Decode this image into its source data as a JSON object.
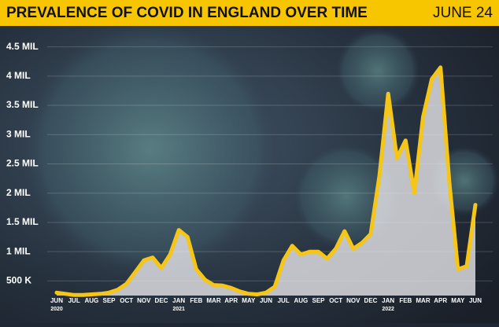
{
  "chart_data": {
    "type": "area-line",
    "title": "PREVALENCE OF COVID IN ENGLAND OVER TIME",
    "date_label": "JUNE 24",
    "categories": [
      "JUN",
      null,
      "JUL",
      null,
      "AUG",
      null,
      "SEP",
      null,
      "OCT",
      null,
      "NOV",
      null,
      "DEC",
      null,
      "JAN",
      null,
      "FEB",
      null,
      "MAR",
      null,
      "APR",
      null,
      "MAY",
      null,
      "JUN",
      null,
      "JUL",
      null,
      "AUG",
      null,
      "SEP",
      null,
      "OCT",
      null,
      "NOV",
      null,
      "DEC",
      null,
      "JAN",
      null,
      "FEB",
      null,
      "MAR",
      null,
      "APR",
      null,
      "MAY",
      null,
      "JUN"
    ],
    "x_sublabels": [
      "2020",
      null,
      null,
      null,
      null,
      null,
      null,
      null,
      null,
      null,
      null,
      null,
      null,
      null,
      "2021",
      null,
      null,
      null,
      null,
      null,
      null,
      null,
      null,
      null,
      null,
      null,
      null,
      null,
      null,
      null,
      null,
      null,
      null,
      null,
      null,
      null,
      null,
      null,
      "2022",
      null,
      null,
      null,
      null,
      null,
      null,
      null,
      null,
      null,
      null
    ],
    "values": [
      300000,
      280000,
      260000,
      260000,
      270000,
      280000,
      300000,
      350000,
      450000,
      650000,
      850000,
      900000,
      720000,
      950000,
      1370000,
      1250000,
      700000,
      520000,
      430000,
      420000,
      380000,
      320000,
      280000,
      270000,
      300000,
      400000,
      850000,
      1100000,
      950000,
      1000000,
      1000000,
      880000,
      1050000,
      1350000,
      1050000,
      1150000,
      1300000,
      2300000,
      3700000,
      2600000,
      2900000,
      2000000,
      3300000,
      3950000,
      4150000,
      2200000,
      700000,
      750000,
      1800000
    ],
    "color": "#f5c518",
    "fill_color": "#e6e6ea",
    "ylim": [
      250000,
      4750000
    ],
    "yticks": [
      {
        "value": 500000,
        "label": "500 K"
      },
      {
        "value": 1000000,
        "label": "1 MIL"
      },
      {
        "value": 1500000,
        "label": "1.5 MIL"
      },
      {
        "value": 2000000,
        "label": "2 MIL"
      },
      {
        "value": 2500000,
        "label": "2.5 MIL"
      },
      {
        "value": 3000000,
        "label": "3 MIL"
      },
      {
        "value": 3500000,
        "label": "3.5 MIL"
      },
      {
        "value": 4000000,
        "label": "4 MIL"
      },
      {
        "value": 4500000,
        "label": "4.5 MIL"
      }
    ],
    "grid": true
  }
}
